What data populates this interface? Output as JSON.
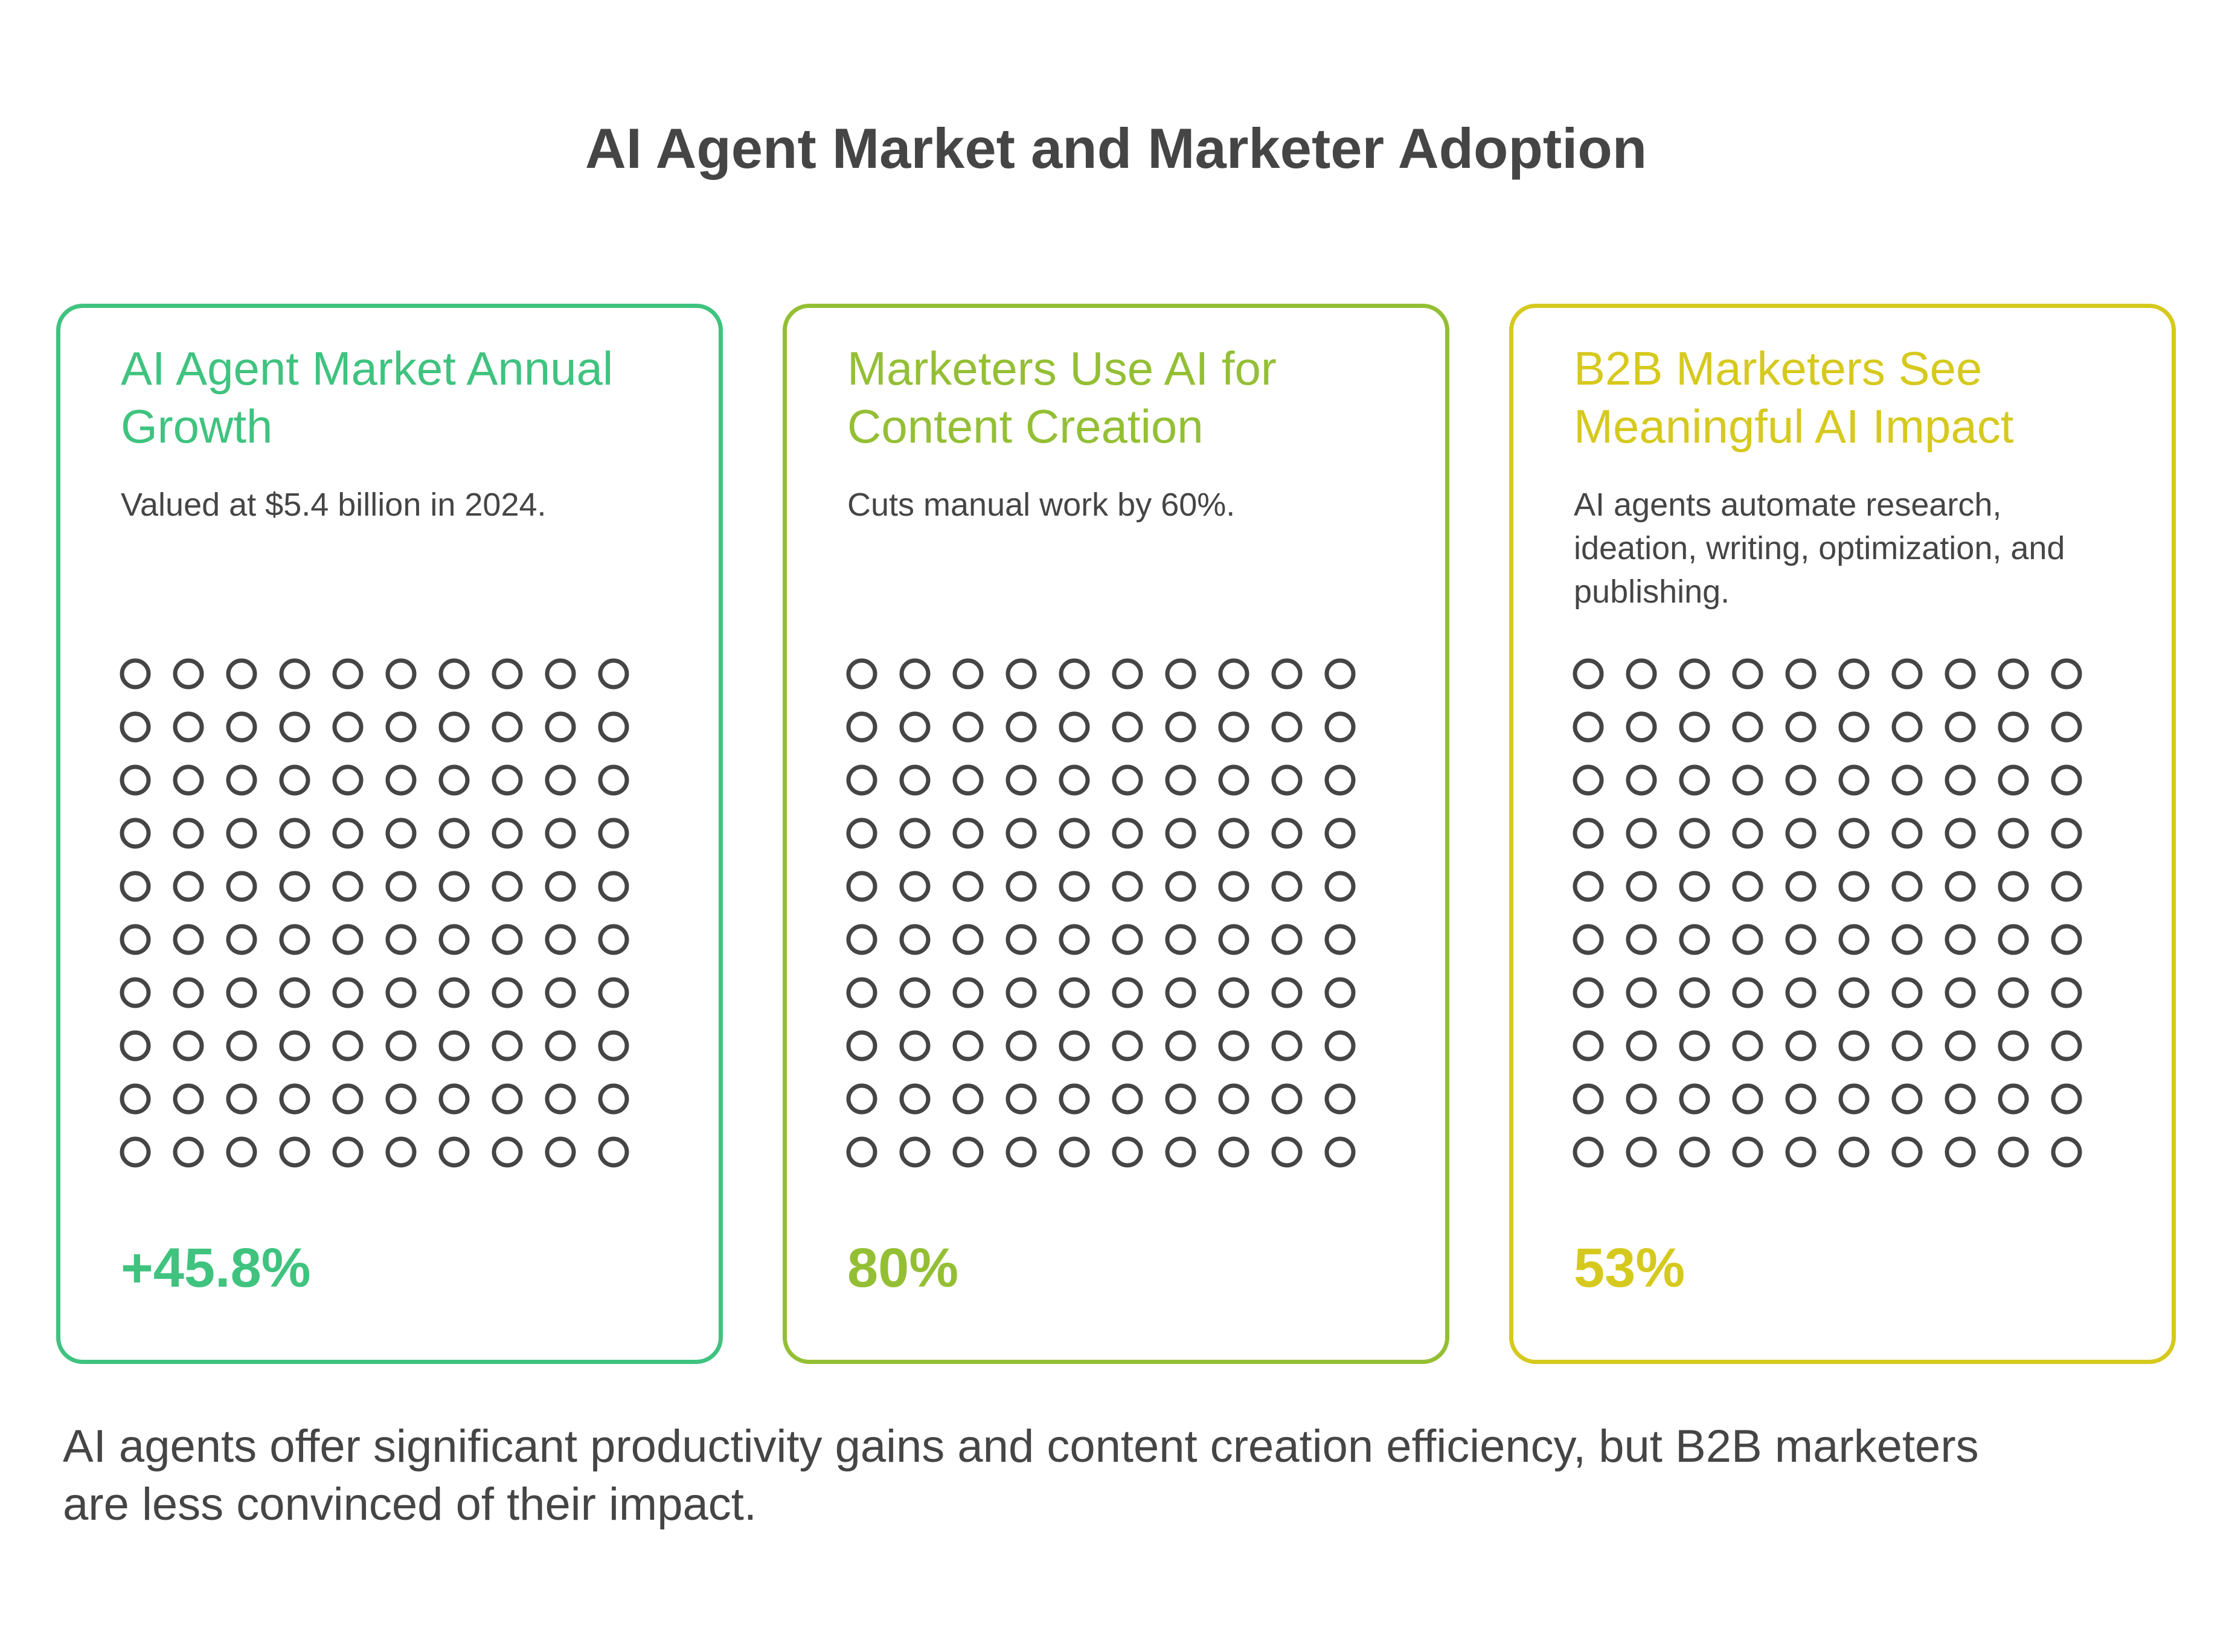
{
  "title": "AI Agent Market and Marketer Adoption",
  "cards": [
    {
      "heading": "AI Agent Market Annual Growth",
      "description": "Valued at $5.4 billion in 2024.",
      "value_label": "+45.8%",
      "color": "#3fc37f"
    },
    {
      "heading": "Marketers Use AI for Content Creation",
      "description": "Cuts manual work by 60%.",
      "value_label": "80%",
      "color": "#94bf35"
    },
    {
      "heading": "B2B Marketers See Meaningful AI Impact",
      "description": "AI agents automate research, ideation, writing, optimization, and publishing.",
      "value_label": "53%",
      "color": "#d6c91e"
    }
  ],
  "summary": "AI agents offer significant productivity gains and content creation efficiency, but B2B marketers are less convinced of their impact.",
  "chart_data": {
    "type": "waffle",
    "grid": {
      "rows": 10,
      "cols": 10,
      "filled": 0
    },
    "dot_color": "#454545",
    "categories": [
      "AI Agent Market Annual Growth",
      "Marketers Use AI for Content Creation",
      "B2B Marketers See Meaningful AI Impact"
    ],
    "values": [
      45.8,
      80,
      53
    ],
    "unit": "%"
  }
}
